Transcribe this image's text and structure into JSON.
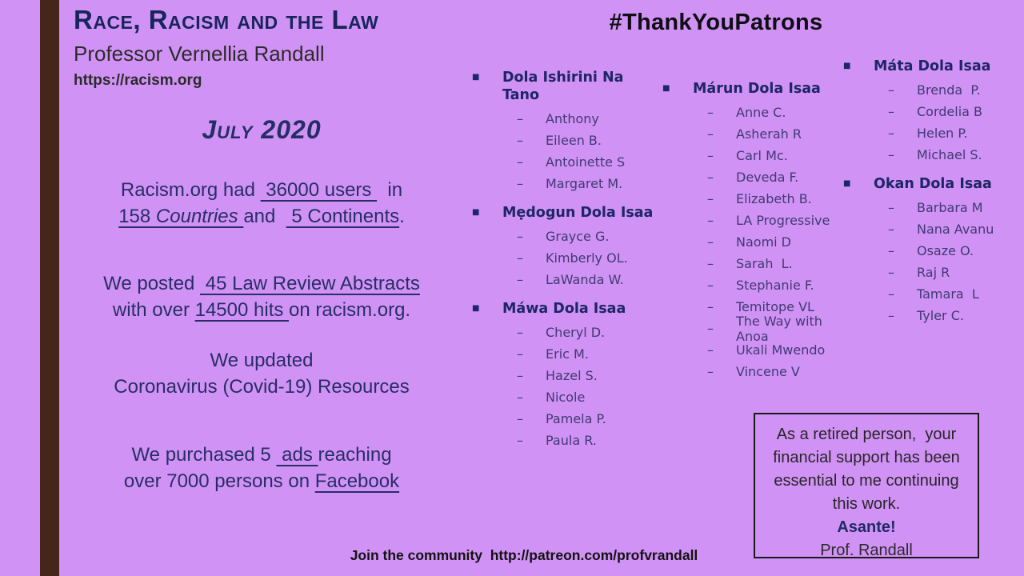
{
  "slide": {
    "colors": {
      "background": "#d192f5",
      "accent_bar": "#44261a",
      "navy": "#1f2a5f",
      "body_text": "#272e66",
      "dark_text": "#262626"
    },
    "header": {
      "title": "Race, Racism and the Law",
      "subtitle": "Professor Vernellia Randall",
      "url": "https://racism.org"
    },
    "month": "July 2020",
    "stats": {
      "users": {
        "l1a": "Racism.org had ",
        "l1u": " 36000 users ",
        "l1b": "  in",
        "l2u1a": "158 ",
        "l2u1b": "Countries ",
        "l2a": "and  ",
        "l2u2": " 5 Continents",
        "l2b": "."
      },
      "posted": {
        "l1a": "We posted ",
        "l1u": " 45 Law Review Abstracts",
        "l2a": "with over ",
        "l2u": "14500 hits ",
        "l2b": "on racism.org."
      },
      "updated": {
        "l1": "We updated",
        "l2": "Coronavirus (Covid-19) Resources"
      },
      "ads": {
        "l1a": "We purchased 5 ",
        "l1u": " ads ",
        "l1b": "reaching",
        "l2a": "over 7000 persons on ",
        "l2u": "Facebook"
      }
    },
    "hashtag": "#ThankYouPatrons",
    "patrons": {
      "bullet_icon": "■",
      "dash_icon": "–",
      "columns": [
        {
          "groups": [
            {
              "title": "Dola Ishirini Na Tano",
              "members": [
                "Anthony",
                "Eileen B.",
                "Antoinette S",
                "Margaret M."
              ]
            },
            {
              "title": "Mẹdogun Dola Isaa",
              "members": [
                "Grayce G.",
                "Kimberly OL.",
                "LaWanda W."
              ]
            },
            {
              "title": "Máwa Dola Isaa",
              "members": [
                "Cheryl D.",
                "Eric M.",
                "Hazel S.",
                "Nicole",
                "Pamela P.",
                "Paula R."
              ]
            }
          ]
        },
        {
          "groups": [
            {
              "title": "Márun Dola Isaa",
              "members": [
                "Anne C.",
                "Asherah R",
                "Carl Mc.",
                "Deveda F.",
                "Elizabeth B.",
                "LA Progressive",
                "Naomi D",
                "Sarah  L.",
                "Stephanie F.",
                "Temitope VL",
                "The Way with Anoa",
                "Ukali Mwendo",
                "Vincene V"
              ]
            }
          ]
        },
        {
          "groups": [
            {
              "title": "Máta Dola Isaa",
              "members": [
                "Brenda  P.",
                "Cordelia B",
                "Helen P.",
                "Michael S."
              ]
            },
            {
              "title": "Okan Dola Isaa",
              "members": [
                "Barbara M",
                "Nana Avanu",
                "Osaze O.",
                "Raj R",
                "Tamara  L",
                "Tyler C."
              ]
            }
          ]
        }
      ]
    },
    "thanks_box": {
      "message": "As a retired person,  your financial support has been essential to me continuing this work.",
      "asante": "Asante!",
      "signature": "Prof. Randall"
    },
    "footer": "Join the community  http://patreon.com/profvrandall"
  }
}
